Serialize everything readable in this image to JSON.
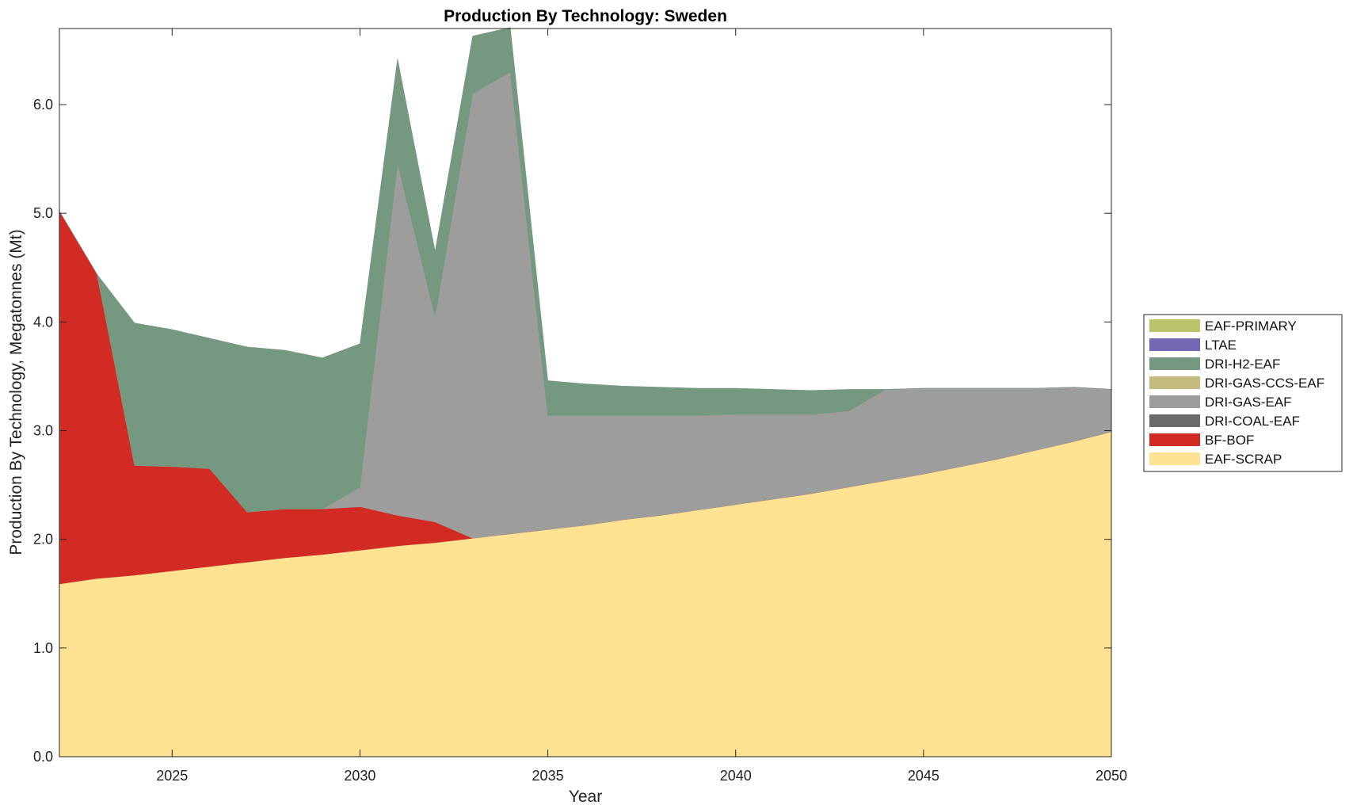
{
  "chart_data": {
    "type": "area",
    "stacked": true,
    "title": "Production By Technology: Sweden",
    "xlabel": "Year",
    "ylabel": "Production By Technology, Megatonnes (Mt)",
    "xlim": [
      2022,
      2050
    ],
    "ylim": [
      0,
      6.7
    ],
    "xticks": [
      2025,
      2030,
      2035,
      2040,
      2045,
      2050
    ],
    "yticks": [
      0,
      1,
      2,
      3,
      4,
      5,
      6
    ],
    "ytick_labels": [
      "0.0",
      "1.0",
      "2.0",
      "3.0",
      "4.0",
      "5.0",
      "6.0"
    ],
    "grid": false,
    "legend_position": "right",
    "x": [
      2022,
      2023,
      2024,
      2025,
      2026,
      2027,
      2028,
      2029,
      2030,
      2031,
      2032,
      2033,
      2034,
      2035,
      2036,
      2037,
      2038,
      2039,
      2040,
      2041,
      2042,
      2043,
      2044,
      2045,
      2046,
      2047,
      2048,
      2049,
      2050
    ],
    "series": [
      {
        "name": "EAF-SCRAP",
        "color": "#FFE393",
        "values": [
          1.59,
          1.64,
          1.67,
          1.71,
          1.75,
          1.79,
          1.83,
          1.86,
          1.9,
          1.94,
          1.97,
          2.01,
          2.05,
          2.09,
          2.13,
          2.18,
          2.22,
          2.27,
          2.32,
          2.37,
          2.42,
          2.48,
          2.54,
          2.6,
          2.67,
          2.74,
          2.82,
          2.9,
          2.99
        ]
      },
      {
        "name": "BF-BOF",
        "color": "#D12B24",
        "values": [
          3.43,
          2.8,
          1.01,
          0.96,
          0.9,
          0.46,
          0.45,
          0.42,
          0.4,
          0.28,
          0.19,
          0.0,
          0,
          0,
          0,
          0,
          0,
          0,
          0,
          0,
          0,
          0,
          0,
          0,
          0,
          0,
          0,
          0,
          0
        ]
      },
      {
        "name": "DRI-COAL-EAF",
        "color": "#6A6A6A",
        "values": [
          0,
          0,
          0,
          0,
          0,
          0,
          0,
          0,
          0,
          0,
          0,
          0,
          0,
          0,
          0,
          0,
          0,
          0,
          0,
          0,
          0,
          0,
          0,
          0,
          0,
          0,
          0,
          0,
          0
        ]
      },
      {
        "name": "DRI-GAS-EAF",
        "color": "#9D9D9B",
        "values": [
          0,
          0,
          0,
          0,
          0,
          0,
          0,
          0,
          0.18,
          3.24,
          1.89,
          4.09,
          4.25,
          1.05,
          1.01,
          0.96,
          0.92,
          0.87,
          0.83,
          0.78,
          0.73,
          0.7,
          0.84,
          0.79,
          0.72,
          0.65,
          0.57,
          0.5,
          0.39
        ]
      },
      {
        "name": "DRI-GAS-CCS-EAF",
        "color": "#C5BA7D",
        "values": [
          0,
          0,
          0,
          0,
          0,
          0,
          0,
          0,
          0,
          0,
          0,
          0,
          0,
          0,
          0,
          0,
          0,
          0,
          0,
          0,
          0,
          0,
          0,
          0,
          0,
          0,
          0,
          0,
          0
        ]
      },
      {
        "name": "DRI-H2-EAF",
        "color": "#759980",
        "values": [
          0,
          0,
          1.31,
          1.26,
          1.2,
          1.52,
          1.46,
          1.39,
          1.32,
          0.96,
          0.6,
          0.53,
          0.41,
          0.32,
          0.29,
          0.27,
          0.26,
          0.25,
          0.24,
          0.23,
          0.22,
          0.2,
          0,
          0,
          0,
          0,
          0,
          0,
          0
        ]
      },
      {
        "name": "LTAE",
        "color": "#7468B5",
        "values": [
          0,
          0,
          0,
          0,
          0,
          0,
          0,
          0,
          0,
          0,
          0,
          0,
          0,
          0,
          0,
          0,
          0,
          0,
          0,
          0,
          0,
          0,
          0,
          0,
          0,
          0,
          0,
          0,
          0
        ]
      },
      {
        "name": "EAF-PRIMARY",
        "color": "#BBC36A",
        "values": [
          0,
          0,
          0,
          0,
          0,
          0,
          0,
          0,
          0,
          0,
          0,
          0,
          0,
          0,
          0,
          0,
          0,
          0,
          0,
          0,
          0,
          0,
          0,
          0,
          0,
          0,
          0,
          0,
          0
        ]
      }
    ],
    "legend_order": [
      "EAF-PRIMARY",
      "LTAE",
      "DRI-H2-EAF",
      "DRI-GAS-CCS-EAF",
      "DRI-GAS-EAF",
      "DRI-COAL-EAF",
      "BF-BOF",
      "EAF-SCRAP"
    ]
  }
}
